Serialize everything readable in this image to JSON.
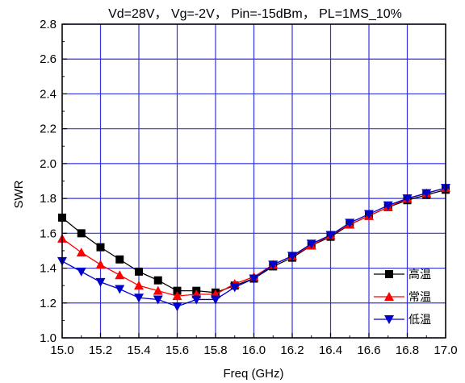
{
  "chart_data": {
    "type": "line",
    "title": "Vd=28V， Vg=-2V， Pin=-15dBm，  PL=1MS_10%",
    "xlabel": "Freq (GHz)",
    "ylabel": "SWR",
    "xlim": [
      15.0,
      17.0
    ],
    "ylim": [
      1.0,
      2.8
    ],
    "xticks": [
      "15.0",
      "15.2",
      "15.4",
      "15.6",
      "15.8",
      "16.0",
      "16.2",
      "16.4",
      "16.6",
      "16.8",
      "17.0"
    ],
    "yticks": [
      "1.0",
      "1.2",
      "1.4",
      "1.6",
      "1.8",
      "2.0",
      "2.2",
      "2.4",
      "2.6",
      "2.8"
    ],
    "grid": true,
    "legend_position": "bottom-right",
    "x": [
      15.0,
      15.1,
      15.2,
      15.3,
      15.4,
      15.5,
      15.6,
      15.7,
      15.8,
      15.9,
      16.0,
      16.1,
      16.2,
      16.3,
      16.4,
      16.5,
      16.6,
      16.7,
      16.8,
      16.9,
      17.0
    ],
    "series": [
      {
        "name": "高温",
        "color": "#000000",
        "marker": "square",
        "values": [
          1.69,
          1.6,
          1.52,
          1.45,
          1.38,
          1.33,
          1.27,
          1.27,
          1.26,
          1.3,
          1.34,
          1.41,
          1.46,
          1.53,
          1.58,
          1.65,
          1.7,
          1.75,
          1.79,
          1.82,
          1.85
        ]
      },
      {
        "name": "常温",
        "color": "#ff0000",
        "marker": "triangle-up",
        "values": [
          1.57,
          1.49,
          1.42,
          1.36,
          1.3,
          1.27,
          1.24,
          1.25,
          1.25,
          1.31,
          1.35,
          1.42,
          1.47,
          1.53,
          1.59,
          1.65,
          1.7,
          1.75,
          1.8,
          1.83,
          1.86
        ]
      },
      {
        "name": "低温",
        "color": "#0000cc",
        "marker": "triangle-down",
        "values": [
          1.44,
          1.38,
          1.32,
          1.28,
          1.23,
          1.22,
          1.18,
          1.22,
          1.22,
          1.29,
          1.34,
          1.42,
          1.47,
          1.54,
          1.59,
          1.66,
          1.71,
          1.76,
          1.8,
          1.83,
          1.86
        ]
      }
    ]
  }
}
